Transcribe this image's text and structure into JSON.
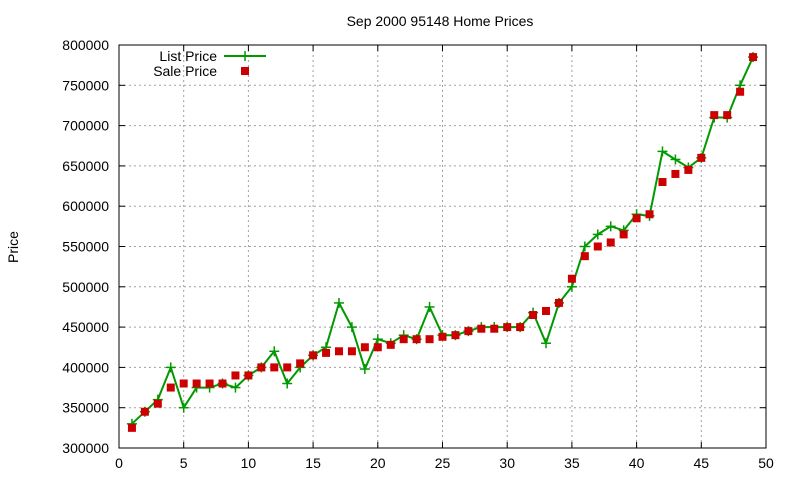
{
  "chart_data": {
    "type": "line",
    "title": "Sep 2000 95148 Home Prices",
    "xlabel": "",
    "ylabel": "Price",
    "xlim": [
      0,
      50
    ],
    "ylim": [
      300000,
      800000
    ],
    "xticks": [
      0,
      5,
      10,
      15,
      20,
      25,
      30,
      35,
      40,
      45,
      50
    ],
    "yticks": [
      300000,
      350000,
      400000,
      450000,
      500000,
      550000,
      600000,
      650000,
      700000,
      750000,
      800000
    ],
    "grid": true,
    "legend_position": "top-left",
    "x": [
      1,
      2,
      3,
      4,
      5,
      6,
      7,
      8,
      9,
      10,
      11,
      12,
      13,
      14,
      15,
      16,
      17,
      18,
      19,
      20,
      21,
      22,
      23,
      24,
      25,
      26,
      27,
      28,
      29,
      30,
      31,
      32,
      33,
      34,
      35,
      36,
      37,
      38,
      39,
      40,
      41,
      42,
      43,
      44,
      45,
      46,
      47,
      48,
      49
    ],
    "series": [
      {
        "name": "List Price",
        "style": "linespoints",
        "color": "#009900",
        "values": [
          330000,
          345000,
          360000,
          400000,
          350000,
          375000,
          375000,
          380000,
          375000,
          390000,
          400000,
          420000,
          380000,
          400000,
          415000,
          425000,
          480000,
          450000,
          398000,
          435000,
          430000,
          440000,
          435000,
          475000,
          440000,
          440000,
          445000,
          450000,
          450000,
          450000,
          450000,
          468000,
          430000,
          480000,
          500000,
          550000,
          565000,
          575000,
          570000,
          590000,
          588000,
          668000,
          658000,
          648000,
          660000,
          710000,
          710000,
          750000,
          785000
        ]
      },
      {
        "name": "Sale Price",
        "style": "points",
        "color": "#cc0000",
        "values": [
          325000,
          345000,
          355000,
          375000,
          380000,
          380000,
          380000,
          380000,
          390000,
          390000,
          400000,
          400000,
          400000,
          405000,
          415000,
          418000,
          420000,
          420000,
          425000,
          425000,
          428000,
          435000,
          435000,
          435000,
          438000,
          440000,
          445000,
          448000,
          448000,
          450000,
          450000,
          465000,
          470000,
          480000,
          510000,
          538000,
          550000,
          555000,
          565000,
          585000,
          590000,
          630000,
          640000,
          645000,
          660000,
          713000,
          713000,
          742000,
          785000
        ]
      }
    ]
  }
}
